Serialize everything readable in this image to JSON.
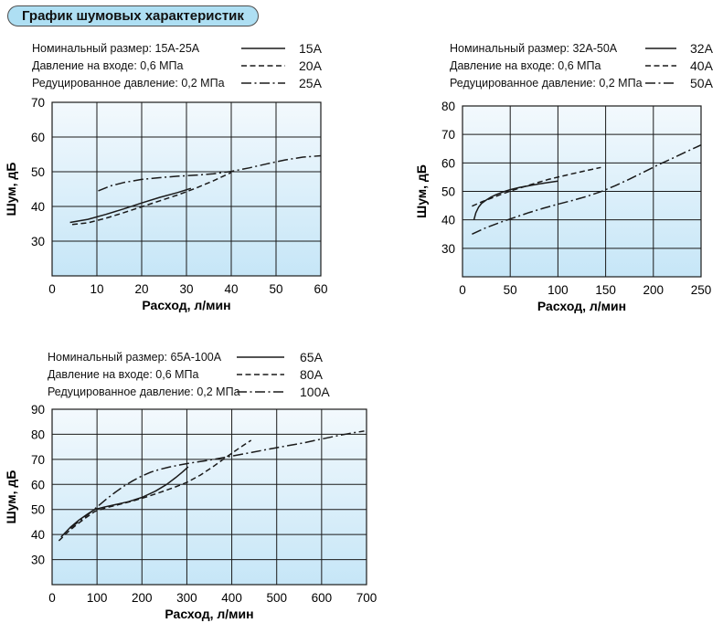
{
  "page": {
    "title": "График шумовых характеристик"
  },
  "colors": {
    "badge_fill": "#aedff3",
    "badge_border": "#4d4d4d",
    "plot_gradient_top": "#f3f9fd",
    "plot_gradient_bottom": "#c6e6f7",
    "grid": "#1a1a1a",
    "curve": "#1a1a1a"
  },
  "chart_data": [
    {
      "type": "line",
      "title_rows": [
        "Номинальный размер: 15А-25А",
        "Давление на входе: 0,6 МПа",
        "Редуцированное давление: 0,2 МПа"
      ],
      "legend": [
        {
          "label": "15А",
          "style": "solid"
        },
        {
          "label": "20А",
          "style": "dashed"
        },
        {
          "label": "25А",
          "style": "dashdot"
        }
      ],
      "xlabel": "Расход, л/мин",
      "ylabel": "Шум, дБ",
      "xlim": [
        0,
        60
      ],
      "ylim": [
        20,
        70
      ],
      "xticks": [
        0,
        10,
        20,
        30,
        40,
        50,
        60
      ],
      "yticks": [
        30,
        40,
        50,
        60,
        70
      ],
      "series": [
        {
          "name": "15А",
          "style": "solid",
          "points": [
            [
              4,
              35.4
            ],
            [
              8,
              36.3
            ],
            [
              12,
              37.7
            ],
            [
              16,
              39.3
            ],
            [
              20,
              41.0
            ],
            [
              24,
              42.6
            ],
            [
              28,
              44.0
            ],
            [
              31,
              45.2
            ]
          ]
        },
        {
          "name": "20А",
          "style": "dashed",
          "points": [
            [
              4.5,
              34.8
            ],
            [
              8,
              35.3
            ],
            [
              12,
              36.6
            ],
            [
              16,
              38.2
            ],
            [
              20,
              39.9
            ],
            [
              24,
              41.6
            ],
            [
              28,
              43.3
            ],
            [
              32,
              45.2
            ],
            [
              36,
              47.4
            ],
            [
              40,
              49.8
            ]
          ]
        },
        {
          "name": "25А",
          "style": "dashdot",
          "points": [
            [
              10.3,
              44.5
            ],
            [
              13,
              45.9
            ],
            [
              16,
              46.9
            ],
            [
              20,
              47.8
            ],
            [
              24,
              48.3
            ],
            [
              28,
              48.7
            ],
            [
              32,
              49.0
            ],
            [
              36,
              49.4
            ],
            [
              40,
              50.1
            ],
            [
              44,
              51.1
            ],
            [
              48,
              52.3
            ],
            [
              52,
              53.4
            ],
            [
              56,
              54.2
            ],
            [
              60,
              54.6
            ]
          ]
        }
      ]
    },
    {
      "type": "line",
      "title_rows": [
        "Номинальный размер: 32А-50А",
        "Давление на входе: 0,6 МПа",
        "Редуцированное давление: 0,2 МПа"
      ],
      "legend": [
        {
          "label": "32А",
          "style": "solid"
        },
        {
          "label": "40А",
          "style": "dashed"
        },
        {
          "label": "50А",
          "style": "dashdot"
        }
      ],
      "xlabel": "Расход, л/мин",
      "ylabel": "Шум, дБ",
      "xlim": [
        0,
        250
      ],
      "ylim": [
        20,
        80
      ],
      "xticks": [
        0,
        50,
        100,
        150,
        200,
        250
      ],
      "yticks": [
        30,
        40,
        50,
        60,
        70,
        80
      ],
      "series": [
        {
          "name": "32А",
          "style": "solid",
          "points": [
            [
              12,
              40
            ],
            [
              14,
              42.5
            ],
            [
              17,
              44.5
            ],
            [
              20,
              45.8
            ],
            [
              25,
              47.0
            ],
            [
              30,
              48.0
            ],
            [
              35,
              48.8
            ],
            [
              40,
              49.5
            ],
            [
              45,
              50.1
            ],
            [
              50,
              50.6
            ],
            [
              60,
              51.4
            ],
            [
              70,
              52.0
            ],
            [
              80,
              52.6
            ],
            [
              90,
              53.1
            ],
            [
              100,
              53.6
            ]
          ]
        },
        {
          "name": "40А",
          "style": "dashed",
          "points": [
            [
              10,
              44.8
            ],
            [
              20,
              46.3
            ],
            [
              30,
              47.6
            ],
            [
              40,
              48.9
            ],
            [
              50,
              50.1
            ],
            [
              60,
              51.2
            ],
            [
              70,
              52.2
            ],
            [
              80,
              53.2
            ],
            [
              90,
              54.2
            ],
            [
              100,
              55.0
            ],
            [
              115,
              56.2
            ],
            [
              130,
              57.3
            ],
            [
              145,
              58.4
            ]
          ]
        },
        {
          "name": "50А",
          "style": "dashdot",
          "points": [
            [
              10,
              35
            ],
            [
              25,
              37.3
            ],
            [
              40,
              39.2
            ],
            [
              55,
              40.9
            ],
            [
              70,
              42.6
            ],
            [
              85,
              44.1
            ],
            [
              100,
              45.5
            ],
            [
              115,
              46.8
            ],
            [
              130,
              48.2
            ],
            [
              145,
              49.9
            ],
            [
              160,
              52.0
            ],
            [
              175,
              54.3
            ],
            [
              190,
              56.8
            ],
            [
              205,
              59.3
            ],
            [
              220,
              61.6
            ],
            [
              235,
              64.0
            ],
            [
              250,
              66.3
            ]
          ]
        }
      ]
    },
    {
      "type": "line",
      "title_rows": [
        "Номинальный размер: 65А-100А",
        "Давление на входе: 0,6 МПа",
        "Редуцированное давление: 0,2 МПа"
      ],
      "legend": [
        {
          "label": "65А",
          "style": "solid"
        },
        {
          "label": "80А",
          "style": "dashed"
        },
        {
          "label": "100А",
          "style": "dashdot"
        }
      ],
      "xlabel": "Расход, л/мин",
      "ylabel": "Шум, дБ",
      "xlim": [
        0,
        700
      ],
      "ylim": [
        20,
        90
      ],
      "xticks": [
        0,
        100,
        200,
        300,
        400,
        500,
        600,
        700
      ],
      "yticks": [
        30,
        40,
        50,
        60,
        70,
        80,
        90
      ],
      "series": [
        {
          "name": "65А",
          "style": "solid",
          "points": [
            [
              20,
              39
            ],
            [
              40,
              42.8
            ],
            [
              60,
              45.8
            ],
            [
              80,
              48.3
            ],
            [
              95,
              50.0
            ],
            [
              115,
              50.9
            ],
            [
              140,
              51.9
            ],
            [
              170,
              53.1
            ],
            [
              200,
              54.8
            ],
            [
              230,
              57.3
            ],
            [
              255,
              60.0
            ],
            [
              275,
              62.7
            ],
            [
              290,
              64.9
            ],
            [
              303,
              67.0
            ]
          ]
        },
        {
          "name": "80А",
          "style": "dashed",
          "points": [
            [
              15,
              37.5
            ],
            [
              35,
              41.0
            ],
            [
              55,
              44.0
            ],
            [
              75,
              46.7
            ],
            [
              95,
              49.2
            ],
            [
              120,
              50.7
            ],
            [
              150,
              52.0
            ],
            [
              180,
              53.4
            ],
            [
              210,
              55.0
            ],
            [
              240,
              56.8
            ],
            [
              270,
              58.7
            ],
            [
              300,
              60.8
            ],
            [
              330,
              63.7
            ],
            [
              360,
              67.3
            ],
            [
              390,
              71.2
            ],
            [
              420,
              74.9
            ],
            [
              443,
              77.6
            ]
          ]
        },
        {
          "name": "100А",
          "style": "dashdot",
          "points": [
            [
              40,
              42.5
            ],
            [
              60,
              45.3
            ],
            [
              80,
              48.0
            ],
            [
              100,
              51.0
            ],
            [
              120,
              54.0
            ],
            [
              140,
              56.8
            ],
            [
              160,
              59.3
            ],
            [
              180,
              61.5
            ],
            [
              200,
              63.4
            ],
            [
              220,
              64.9
            ],
            [
              240,
              66.0
            ],
            [
              260,
              66.9
            ],
            [
              285,
              67.8
            ],
            [
              310,
              68.6
            ],
            [
              340,
              69.4
            ],
            [
              370,
              70.3
            ],
            [
              400,
              71.3
            ],
            [
              440,
              72.6
            ],
            [
              480,
              74.0
            ],
            [
              520,
              75.3
            ],
            [
              560,
              76.6
            ],
            [
              600,
              78.1
            ],
            [
              640,
              79.6
            ],
            [
              670,
              80.6
            ],
            [
              695,
              81.3
            ]
          ]
        }
      ]
    }
  ]
}
